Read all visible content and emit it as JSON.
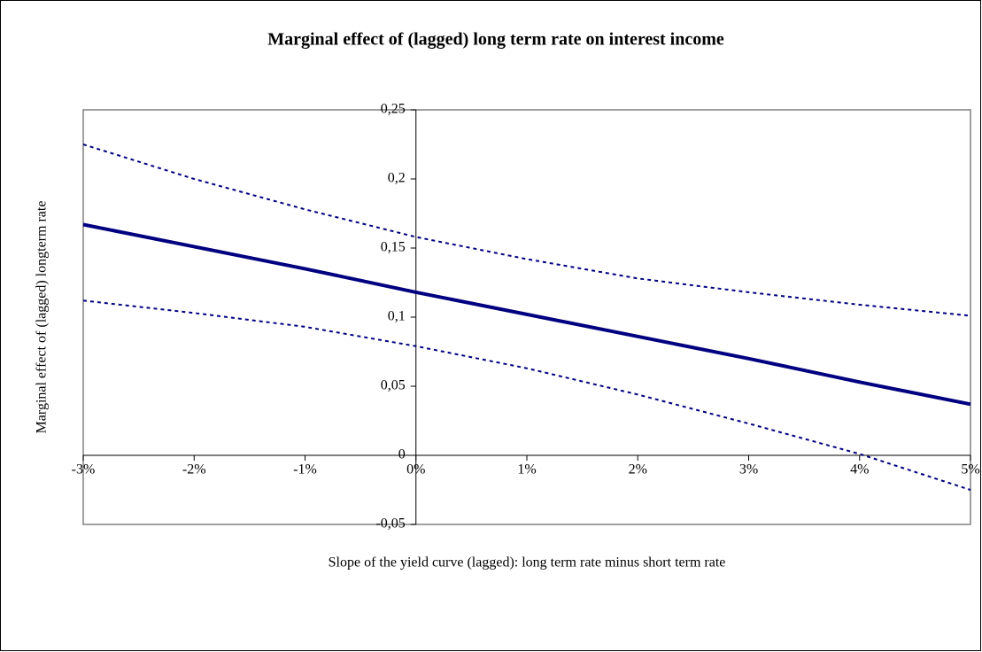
{
  "chart_data": {
    "type": "line",
    "title": "Marginal effect of (lagged) long term rate on interest income",
    "x_label": "Slope of the yield curve (lagged): long term rate minus short term rate",
    "y_label": "Marginal effect of (lagged) longterm rate",
    "x": [
      -3,
      -2,
      -1,
      0,
      1,
      2,
      3,
      4,
      5
    ],
    "series": [
      {
        "color": "#000080",
        "style": "solid",
        "values": [
          0.167,
          0.151,
          0.135,
          0.118,
          0.102,
          0.086,
          0.07,
          0.053,
          0.037
        ]
      },
      {
        "color": "#000080",
        "style": "dashed",
        "values": [
          0.225,
          0.2,
          0.178,
          0.158,
          0.142,
          0.128,
          0.118,
          0.109,
          0.101
        ]
      },
      {
        "color": "#000080",
        "style": "dashed",
        "values": [
          0.112,
          0.103,
          0.093,
          0.079,
          0.063,
          0.044,
          0.023,
          0.001,
          -0.025
        ]
      }
    ],
    "xlim": [
      -3,
      5
    ],
    "xticks": [
      {
        "value": -3,
        "label": "-3%"
      },
      {
        "value": -2,
        "label": "-2%"
      },
      {
        "value": -1,
        "label": "-1%"
      },
      {
        "value": 0,
        "label": "0%"
      },
      {
        "value": 1,
        "label": "1%"
      },
      {
        "value": 2,
        "label": "2%"
      },
      {
        "value": 3,
        "label": "3%"
      },
      {
        "value": 4,
        "label": "4%"
      },
      {
        "value": 5,
        "label": "5%"
      }
    ],
    "ylim": [
      -0.05,
      0.25
    ],
    "yticks": [
      {
        "value": -0.05,
        "label": "-0,05"
      },
      0,
      {
        "value": 0.05,
        "label": "0,05"
      },
      {
        "value": 0.1,
        "label": "0,1"
      },
      {
        "value": 0.15,
        "label": "0,15"
      },
      {
        "value": 0.2,
        "label": "0,2"
      },
      {
        "value": 0.25,
        "label": "0,25"
      }
    ],
    "grid": false
  }
}
